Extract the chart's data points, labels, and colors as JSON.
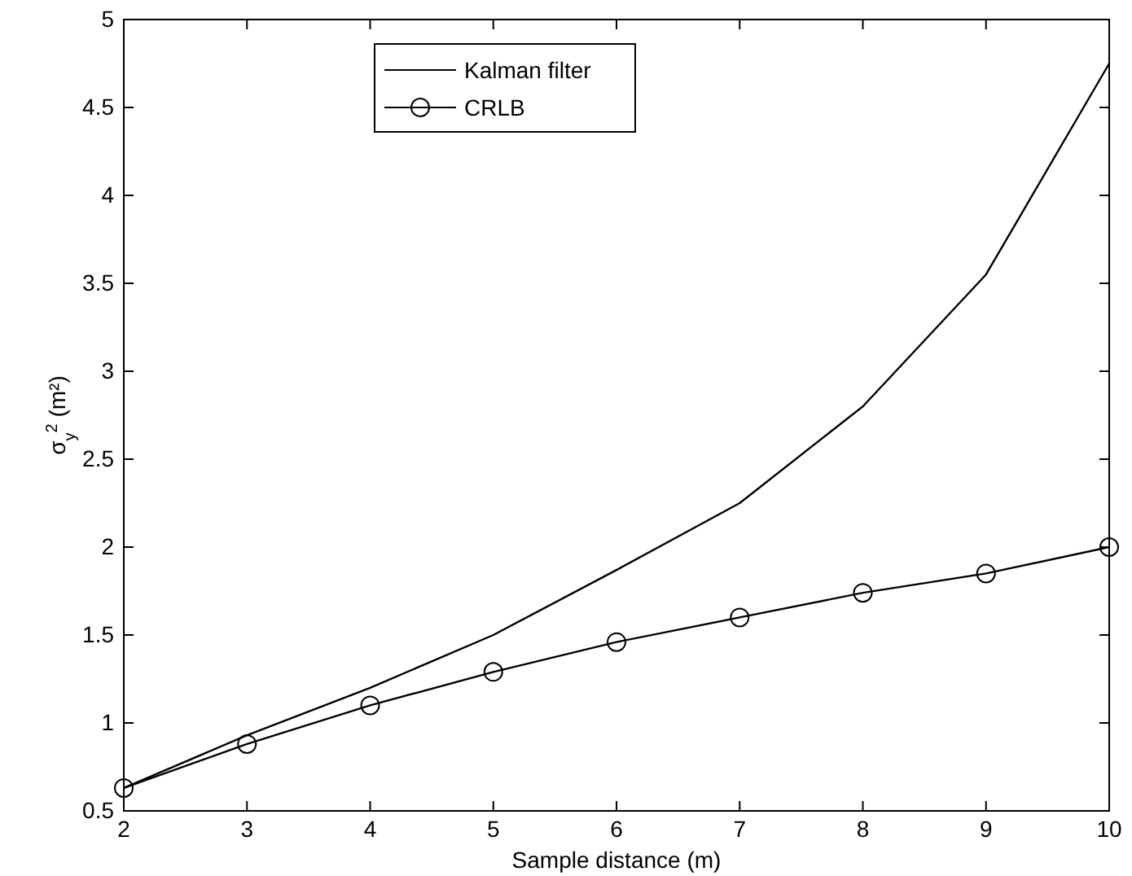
{
  "chart_data": {
    "type": "line",
    "xlabel": "Sample distance (m)",
    "ylabel": "σ$_{y}$$^{2}$ (m²)",
    "x": [
      2,
      3,
      4,
      5,
      6,
      7,
      8,
      9,
      10
    ],
    "xlim": [
      2,
      10
    ],
    "xticks": [
      2,
      3,
      4,
      5,
      6,
      7,
      8,
      9,
      10
    ],
    "ylim": [
      0.5,
      5
    ],
    "yticks": [
      0.5,
      1,
      1.5,
      2,
      2.5,
      3,
      3.5,
      4,
      4.5,
      5
    ],
    "grid": false,
    "legend": "top left",
    "series": [
      {
        "name": "Kalman filter",
        "color": "#000000",
        "marker": "none",
        "values": [
          0.63,
          0.93,
          1.2,
          1.5,
          1.87,
          2.25,
          2.8,
          3.55,
          4.75
        ]
      },
      {
        "name": "CRLB",
        "color": "#000000",
        "marker": "circle",
        "values": [
          0.63,
          0.88,
          1.1,
          1.29,
          1.46,
          1.6,
          1.74,
          1.85,
          2.0
        ]
      }
    ]
  }
}
